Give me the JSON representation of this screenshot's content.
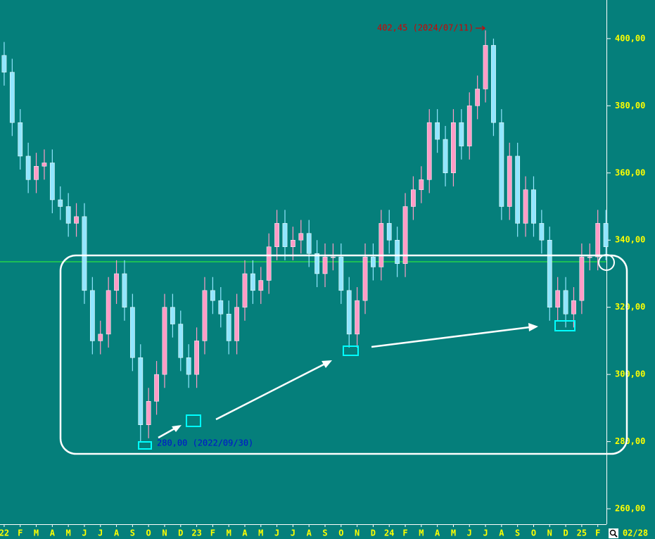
{
  "chart_data": {
    "type": "candlestick",
    "x": [
      0,
      0.5,
      1,
      1.5,
      2,
      2.5,
      3,
      3.5,
      4,
      4.5,
      5,
      5.5,
      6,
      6.5,
      7,
      7.5,
      8,
      8.5,
      9,
      9.5,
      10,
      10.5,
      11,
      11.5,
      12,
      12.5,
      13,
      13.5,
      14,
      14.5,
      15,
      15.5,
      16,
      16.5,
      17,
      17.5,
      18,
      18.5,
      19,
      19.5,
      20,
      20.5,
      21,
      21.5,
      22,
      22.5,
      23,
      23.5,
      24,
      24.5,
      25,
      25.5,
      26,
      26.5,
      27,
      27.5,
      28,
      28.5,
      29,
      29.5,
      30,
      30.5,
      31,
      31.5,
      32,
      32.5,
      33,
      33.5,
      34,
      34.5,
      35,
      35.5,
      36,
      36.5,
      37,
      37.5
    ],
    "open": [
      395,
      390,
      375,
      365,
      358,
      362,
      363,
      352,
      350,
      345,
      347,
      325,
      310,
      312,
      325,
      330,
      320,
      305,
      285,
      292,
      300,
      320,
      315,
      305,
      300,
      310,
      325,
      322,
      318,
      310,
      320,
      330,
      325,
      328,
      338,
      345,
      338,
      340,
      342,
      336,
      330,
      335,
      335,
      325,
      312,
      322,
      335,
      332,
      345,
      340,
      333,
      350,
      355,
      358,
      375,
      370,
      360,
      375,
      368,
      380,
      385,
      398,
      375,
      350,
      365,
      345,
      355,
      345,
      340,
      320,
      325,
      318,
      322,
      335,
      335,
      345
    ],
    "high": [
      399,
      394,
      379,
      369,
      366,
      367,
      367,
      356,
      354,
      351,
      351,
      329,
      316,
      329,
      334,
      334,
      324,
      309,
      296,
      304,
      324,
      324,
      319,
      309,
      314,
      329,
      329,
      326,
      322,
      324,
      334,
      334,
      332,
      342,
      349,
      349,
      344,
      346,
      346,
      340,
      339,
      339,
      339,
      329,
      326,
      339,
      339,
      349,
      349,
      344,
      354,
      359,
      362,
      379,
      379,
      374,
      379,
      379,
      384,
      389,
      402.45,
      400,
      379,
      369,
      369,
      359,
      359,
      349,
      344,
      329,
      329,
      326,
      339,
      339,
      349,
      349
    ],
    "low": [
      386,
      371,
      361,
      354,
      354,
      358,
      348,
      346,
      341,
      341,
      321,
      306,
      306,
      308,
      321,
      316,
      301,
      280,
      281,
      288,
      296,
      311,
      301,
      296,
      296,
      306,
      318,
      314,
      306,
      306,
      316,
      321,
      321,
      324,
      334,
      334,
      334,
      336,
      332,
      326,
      326,
      331,
      321,
      308,
      308,
      318,
      328,
      328,
      336,
      329,
      329,
      346,
      351,
      354,
      366,
      356,
      356,
      364,
      364,
      376,
      381,
      371,
      346,
      346,
      341,
      341,
      341,
      336,
      316,
      316,
      314,
      314,
      318,
      331,
      331,
      334
    ],
    "close": [
      390,
      375,
      365,
      358,
      362,
      363,
      352,
      350,
      345,
      347,
      325,
      310,
      312,
      325,
      330,
      320,
      305,
      285,
      292,
      300,
      320,
      315,
      305,
      300,
      310,
      325,
      322,
      318,
      310,
      320,
      330,
      325,
      328,
      338,
      345,
      338,
      340,
      342,
      336,
      330,
      335,
      335,
      325,
      312,
      322,
      335,
      332,
      345,
      340,
      333,
      350,
      355,
      358,
      375,
      370,
      360,
      375,
      368,
      380,
      385,
      398,
      375,
      350,
      365,
      345,
      355,
      345,
      340,
      320,
      325,
      318,
      322,
      335,
      335,
      345,
      338
    ],
    "up_color": "#ff9cc6",
    "down_color": "#92e6ff",
    "reference_line": 333.55,
    "xlim": [
      -0.26,
      37.54
    ],
    "xticks": [
      {
        "value": 0,
        "label": "22"
      },
      {
        "value": 1,
        "label": "F"
      },
      {
        "value": 2,
        "label": "M"
      },
      {
        "value": 3,
        "label": "A"
      },
      {
        "value": 4,
        "label": "M"
      },
      {
        "value": 5,
        "label": "J"
      },
      {
        "value": 6,
        "label": "J"
      },
      {
        "value": 7,
        "label": "A"
      },
      {
        "value": 8,
        "label": "S"
      },
      {
        "value": 9,
        "label": "O"
      },
      {
        "value": 10,
        "label": "N"
      },
      {
        "value": 11,
        "label": "D"
      },
      {
        "value": 12,
        "label": "23"
      },
      {
        "value": 13,
        "label": "F"
      },
      {
        "value": 14,
        "label": "M"
      },
      {
        "value": 15,
        "label": "A"
      },
      {
        "value": 16,
        "label": "M"
      },
      {
        "value": 17,
        "label": "J"
      },
      {
        "value": 18,
        "label": "J"
      },
      {
        "value": 19,
        "label": "A"
      },
      {
        "value": 20,
        "label": "S"
      },
      {
        "value": 21,
        "label": "O"
      },
      {
        "value": 22,
        "label": "N"
      },
      {
        "value": 23,
        "label": "D"
      },
      {
        "value": 24,
        "label": "24"
      },
      {
        "value": 25,
        "label": "F"
      },
      {
        "value": 26,
        "label": "M"
      },
      {
        "value": 27,
        "label": "A"
      },
      {
        "value": 28,
        "label": "M"
      },
      {
        "value": 29,
        "label": "J"
      },
      {
        "value": 30,
        "label": "J"
      },
      {
        "value": 31,
        "label": "A"
      },
      {
        "value": 32,
        "label": "S"
      },
      {
        "value": 33,
        "label": "O"
      },
      {
        "value": 34,
        "label": "N"
      },
      {
        "value": 35,
        "label": "D"
      },
      {
        "value": 36,
        "label": "25"
      },
      {
        "value": 37,
        "label": "F"
      }
    ],
    "ylim": [
      255.4,
      411.5
    ],
    "yticks": [
      {
        "value": 260,
        "label": "260,00"
      },
      {
        "value": 280,
        "label": "280,00"
      },
      {
        "value": 300,
        "label": "300,00"
      },
      {
        "value": 320,
        "label": "320,00"
      },
      {
        "value": 340,
        "label": "340,00"
      },
      {
        "value": 360,
        "label": "360,00"
      },
      {
        "value": 380,
        "label": "380,00"
      },
      {
        "value": 400,
        "label": "400,00"
      }
    ],
    "annotations": [
      "402,45 (2024/07/11)",
      "280,00 (2022/09/30)"
    ],
    "date_label": "02/28"
  }
}
